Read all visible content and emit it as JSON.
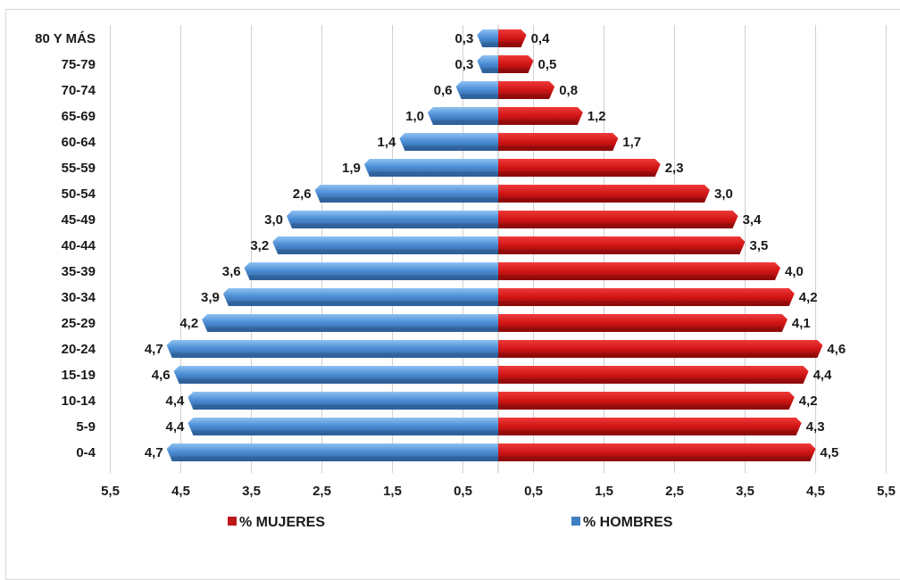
{
  "chart_data": {
    "type": "bar",
    "orientation": "horizontal",
    "subtype": "population-pyramid",
    "categories": [
      "80 Y MÁS",
      "75-79",
      "70-74",
      "65-69",
      "60-64",
      "55-59",
      "50-54",
      "45-49",
      "40-44",
      "35-39",
      "30-34",
      "25-29",
      "20-24",
      "15-19",
      "10-14",
      "5-9",
      "0-4"
    ],
    "series": [
      {
        "name": "% HOMBRES",
        "side": "left",
        "color": "#3f7fc4",
        "values": [
          0.3,
          0.3,
          0.6,
          1.0,
          1.4,
          1.9,
          2.6,
          3.0,
          3.2,
          3.6,
          3.9,
          4.2,
          4.7,
          4.6,
          4.4,
          4.4,
          4.7
        ],
        "labels": [
          "0,3",
          "0,3",
          "0,6",
          "1,0",
          "1,4",
          "1,9",
          "2,6",
          "3,0",
          "3,2",
          "3,6",
          "3,9",
          "4,2",
          "4,7",
          "4,6",
          "4,4",
          "4,4",
          "4,7"
        ]
      },
      {
        "name": "% MUJERES",
        "side": "right",
        "color": "#d51a1a",
        "values": [
          0.4,
          0.5,
          0.8,
          1.2,
          1.7,
          2.3,
          3.0,
          3.4,
          3.5,
          4.0,
          4.2,
          4.1,
          4.6,
          4.4,
          4.2,
          4.3,
          4.5
        ],
        "labels": [
          "0,4",
          "0,5",
          "0,8",
          "1,2",
          "1,7",
          "2,3",
          "3,0",
          "3,4",
          "3,5",
          "4,0",
          "4,2",
          "4,1",
          "4,6",
          "4,4",
          "4,2",
          "4,3",
          "4,5"
        ]
      }
    ],
    "x_ticks": [
      {
        "value": -5.5,
        "label": "5,5"
      },
      {
        "value": -4.5,
        "label": "4,5"
      },
      {
        "value": -3.5,
        "label": "3,5"
      },
      {
        "value": -2.5,
        "label": "2,5"
      },
      {
        "value": -1.5,
        "label": "1,5"
      },
      {
        "value": -0.5,
        "label": "0,5"
      },
      {
        "value": 0.5,
        "label": "0,5"
      },
      {
        "value": 1.5,
        "label": "1,5"
      },
      {
        "value": 2.5,
        "label": "2,5"
      },
      {
        "value": 3.5,
        "label": "3,5"
      },
      {
        "value": 4.5,
        "label": "4,5"
      },
      {
        "value": 5.5,
        "label": "5,5"
      }
    ],
    "xlim": [
      -5.5,
      5.5
    ],
    "grid": true,
    "legend": [
      {
        "label": "% MUJERES",
        "color": "#c01818"
      },
      {
        "label": "% HOMBRES",
        "color": "#3f7fc4"
      }
    ],
    "legend_position": "bottom"
  }
}
